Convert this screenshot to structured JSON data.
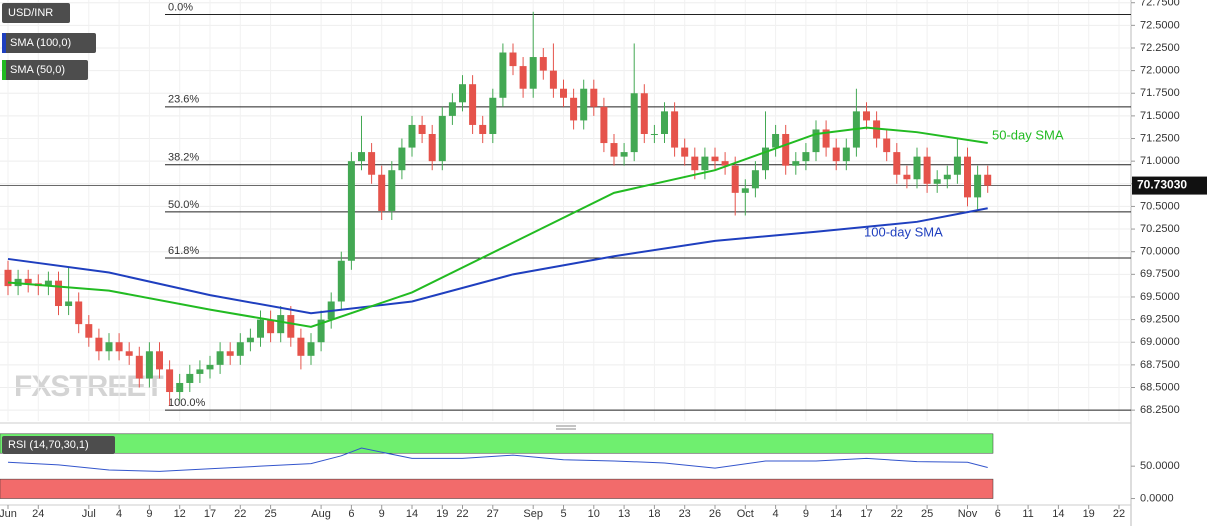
{
  "chart_data": [
    {
      "type": "candlestick",
      "title": "USD/INR",
      "watermark": "FXSTREET",
      "grid": true,
      "up_color": "#43a853",
      "down_color": "#e5534b",
      "categories": [
        "Jun",
        null,
        null,
        "24",
        null,
        null,
        null,
        null,
        "Jul",
        null,
        null,
        "4",
        null,
        null,
        "9",
        null,
        null,
        "12",
        null,
        null,
        "17",
        null,
        null,
        "22",
        null,
        null,
        "25",
        null,
        null,
        null,
        null,
        "Aug",
        null,
        null,
        "6",
        null,
        null,
        "9",
        null,
        null,
        "14",
        null,
        null,
        "19",
        null,
        "22",
        null,
        null,
        "27",
        null,
        null,
        null,
        "Sep",
        null,
        null,
        "5",
        null,
        null,
        "10",
        null,
        null,
        "13",
        null,
        null,
        "18",
        null,
        null,
        "23",
        null,
        null,
        "26",
        null,
        null,
        "Oct",
        null,
        null,
        "4",
        null,
        null,
        "9",
        null,
        null,
        "14",
        null,
        null,
        "17",
        null,
        null,
        "22",
        null,
        null,
        "25",
        null,
        null,
        null,
        "Nov",
        null,
        null,
        "6",
        null,
        null,
        "11",
        null,
        null,
        "14",
        null,
        null,
        "19",
        null,
        null,
        "22",
        null
      ],
      "open": [
        69.8,
        69.62,
        69.7,
        69.65,
        69.62,
        69.68,
        69.4,
        69.45,
        69.2,
        69.05,
        68.9,
        69.0,
        68.9,
        68.85,
        68.6,
        68.9,
        68.7,
        68.45,
        68.55,
        68.65,
        68.7,
        68.75,
        68.9,
        68.85,
        69.0,
        69.05,
        69.25,
        69.1,
        69.3,
        69.05,
        68.85,
        69.0,
        69.25,
        69.45,
        69.9,
        71.0,
        71.1,
        70.85,
        70.45,
        70.9,
        71.15,
        71.4,
        71.3,
        71.0,
        71.5,
        71.65,
        71.85,
        71.4,
        71.3,
        71.7,
        72.2,
        72.05,
        71.8,
        72.15,
        72.0,
        71.8,
        71.7,
        71.45,
        71.8,
        71.6,
        71.2,
        71.05,
        71.1,
        71.75,
        71.3,
        71.3,
        71.55,
        71.15,
        71.05,
        70.9,
        71.05,
        71.0,
        70.95,
        70.65,
        70.7,
        70.9,
        71.15,
        71.3,
        70.95,
        71.0,
        71.1,
        71.35,
        71.15,
        71.0,
        71.15,
        71.55,
        71.45,
        71.25,
        71.1,
        70.85,
        70.8,
        71.05,
        70.75,
        70.8,
        70.85,
        71.05,
        70.6,
        70.85,
        null,
        null,
        null,
        null,
        null,
        null,
        null,
        null,
        null,
        null,
        null,
        null,
        null,
        null
      ],
      "high": [
        69.9,
        69.8,
        69.8,
        69.75,
        69.78,
        69.78,
        69.82,
        69.55,
        69.3,
        69.15,
        69.1,
        69.1,
        69.0,
        68.95,
        69.0,
        69.0,
        68.8,
        68.65,
        68.75,
        68.8,
        68.85,
        69.0,
        69.0,
        69.1,
        69.15,
        69.35,
        69.35,
        69.4,
        69.4,
        69.15,
        69.1,
        69.35,
        69.55,
        70.0,
        71.1,
        71.5,
        71.2,
        70.95,
        71.0,
        71.25,
        71.5,
        71.5,
        71.4,
        71.6,
        71.75,
        71.95,
        71.95,
        71.5,
        71.8,
        72.3,
        72.3,
        72.15,
        72.65,
        72.25,
        72.3,
        71.9,
        71.8,
        71.9,
        71.9,
        71.7,
        71.3,
        71.2,
        72.3,
        71.85,
        71.4,
        71.65,
        71.65,
        71.25,
        71.15,
        71.15,
        71.15,
        71.1,
        71.05,
        70.8,
        71.0,
        71.55,
        71.4,
        71.4,
        71.1,
        71.2,
        71.45,
        71.45,
        71.25,
        71.25,
        71.8,
        71.65,
        71.55,
        71.35,
        71.2,
        70.95,
        71.15,
        71.15,
        70.9,
        70.95,
        71.25,
        71.15,
        70.95,
        70.95,
        null,
        null,
        null,
        null,
        null,
        null,
        null,
        null,
        null,
        null,
        null,
        null,
        null,
        null
      ],
      "low": [
        69.52,
        69.52,
        69.55,
        69.52,
        69.52,
        69.3,
        69.3,
        69.1,
        68.95,
        68.8,
        68.8,
        68.8,
        68.75,
        68.5,
        68.5,
        68.6,
        68.3,
        68.35,
        68.45,
        68.55,
        68.6,
        68.65,
        68.75,
        68.75,
        68.9,
        68.95,
        69.0,
        69.0,
        68.95,
        68.7,
        68.75,
        68.9,
        69.15,
        69.35,
        69.8,
        70.9,
        70.75,
        70.35,
        70.35,
        70.8,
        71.05,
        71.2,
        70.9,
        70.9,
        71.4,
        71.55,
        71.3,
        71.2,
        71.2,
        71.6,
        71.95,
        71.7,
        71.7,
        71.9,
        71.7,
        71.6,
        71.35,
        71.35,
        71.5,
        71.1,
        70.95,
        70.95,
        71.0,
        71.2,
        71.2,
        71.2,
        71.05,
        70.95,
        70.8,
        70.8,
        70.9,
        70.85,
        70.4,
        70.4,
        70.6,
        70.8,
        71.05,
        70.85,
        70.85,
        70.9,
        71.0,
        71.05,
        70.9,
        70.9,
        71.05,
        71.35,
        71.15,
        71.0,
        70.75,
        70.7,
        70.7,
        70.65,
        70.65,
        70.7,
        70.75,
        70.5,
        70.45,
        70.65,
        null,
        null,
        null,
        null,
        null,
        null,
        null,
        null,
        null,
        null,
        null,
        null,
        null,
        null
      ],
      "close": [
        69.62,
        69.7,
        69.65,
        69.62,
        69.68,
        69.4,
        69.45,
        69.2,
        69.05,
        68.9,
        69.0,
        68.9,
        68.85,
        68.6,
        68.9,
        68.7,
        68.45,
        68.55,
        68.65,
        68.7,
        68.75,
        68.9,
        68.85,
        69.0,
        69.05,
        69.25,
        69.1,
        69.3,
        69.05,
        68.85,
        69.0,
        69.25,
        69.45,
        69.9,
        71.0,
        71.1,
        70.85,
        70.45,
        70.9,
        71.15,
        71.4,
        71.3,
        71.0,
        71.5,
        71.65,
        71.85,
        71.4,
        71.3,
        71.7,
        72.2,
        72.05,
        71.8,
        72.15,
        72.0,
        71.8,
        71.7,
        71.45,
        71.8,
        71.6,
        71.2,
        71.05,
        71.1,
        71.75,
        71.3,
        71.3,
        71.55,
        71.15,
        71.05,
        70.9,
        71.05,
        71.0,
        70.95,
        70.65,
        70.7,
        70.9,
        71.15,
        71.3,
        70.95,
        71.0,
        71.1,
        71.35,
        71.15,
        71.0,
        71.15,
        71.55,
        71.45,
        71.25,
        71.1,
        70.85,
        70.8,
        71.05,
        70.75,
        70.8,
        70.85,
        71.05,
        70.6,
        70.85,
        70.73,
        null,
        null,
        null,
        null,
        null,
        null,
        null,
        null,
        null,
        null,
        null,
        null,
        null,
        null
      ],
      "overlays": [
        {
          "name": "SMA (100,0)",
          "color": "#1f3fbf",
          "x": [
            0,
            10,
            20,
            30,
            40,
            50,
            60,
            70,
            80,
            90,
            97
          ],
          "values": [
            69.92,
            69.77,
            69.52,
            69.32,
            69.45,
            69.75,
            69.95,
            70.12,
            70.22,
            70.33,
            70.48
          ]
        },
        {
          "name": "SMA (50,0)",
          "color": "#22bb22",
          "x": [
            0,
            10,
            20,
            30,
            40,
            50,
            60,
            70,
            80,
            85,
            90,
            97
          ],
          "values": [
            69.66,
            69.57,
            69.36,
            69.17,
            69.55,
            70.1,
            70.65,
            70.9,
            71.3,
            71.37,
            71.32,
            71.2
          ]
        }
      ],
      "annotations": [
        "50-day SMA",
        "100-day SMA"
      ],
      "fib_levels": [
        {
          "percent_label": "0.0%",
          "price": 72.62
        },
        {
          "percent_label": "23.6%",
          "price": 71.6
        },
        {
          "percent_label": "38.2%",
          "price": 70.96
        },
        {
          "percent_label": "50.0%",
          "price": 70.44
        },
        {
          "percent_label": "61.8%",
          "price": 69.93
        },
        {
          "percent_label": "100.0%",
          "price": 68.25
        }
      ],
      "last_price": {
        "value": 70.7303,
        "label": "70.73030"
      },
      "ylim": [
        68.13,
        72.78
      ],
      "yticks": [
        {
          "value": 72.75,
          "label": "72.7500"
        },
        {
          "value": 72.5,
          "label": "72.5000"
        },
        {
          "value": 72.25,
          "label": "72.2500"
        },
        {
          "value": 72,
          "label": "72.0000"
        },
        {
          "value": 71.75,
          "label": "71.7500"
        },
        {
          "value": 71.5,
          "label": "71.5000"
        },
        {
          "value": 71.25,
          "label": "71.2500"
        },
        {
          "value": 71,
          "label": "71.0000"
        },
        {
          "value": 70.75,
          "label": "70.7500"
        },
        {
          "value": 70.5,
          "label": "70.5000"
        },
        {
          "value": 70.25,
          "label": "70.2500"
        },
        {
          "value": 70,
          "label": "70.0000"
        },
        {
          "value": 69.75,
          "label": "69.7500"
        },
        {
          "value": 69.5,
          "label": "69.5000"
        },
        {
          "value": 69.25,
          "label": "69.2500"
        },
        {
          "value": 69,
          "label": "69.0000"
        },
        {
          "value": 68.75,
          "label": "68.7500"
        },
        {
          "value": 68.5,
          "label": "68.5000"
        },
        {
          "value": 68.25,
          "label": "68.2500"
        }
      ]
    },
    {
      "type": "line",
      "title": "RSI (14,70,30,1)",
      "color": "#3355cc",
      "x": [
        0,
        5,
        10,
        15,
        20,
        25,
        30,
        33,
        35,
        40,
        45,
        50,
        55,
        60,
        65,
        70,
        75,
        80,
        85,
        90,
        95,
        97
      ],
      "values": [
        56,
        52,
        44,
        42,
        46,
        50,
        54,
        66,
        78,
        62,
        62,
        67,
        60,
        58,
        55,
        47,
        58,
        58,
        62,
        57,
        56,
        48
      ],
      "bands": [
        {
          "from": 70,
          "to": 100,
          "color": "#6fef6f"
        },
        {
          "from": 0,
          "to": 30,
          "color": "#f26b6b"
        }
      ],
      "ylim": [
        -10,
        109
      ],
      "yticks": [
        {
          "value": 50,
          "label": "50.0000"
        },
        {
          "value": 0,
          "label": "0.0000"
        }
      ]
    }
  ]
}
